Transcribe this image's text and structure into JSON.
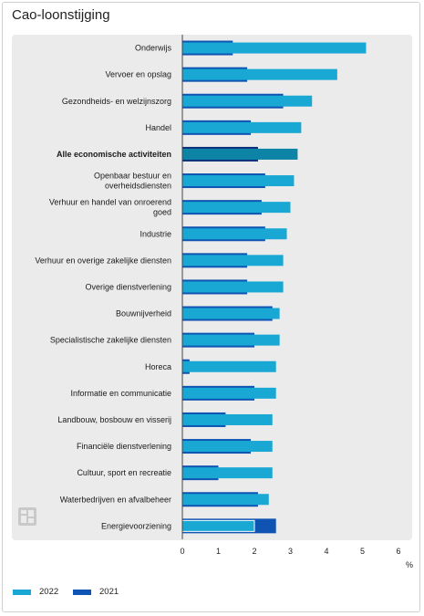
{
  "title": "Cao-loonstijging",
  "colors": {
    "y2022": "#19a8d3",
    "y2021": "#1054b3",
    "highlight_2022": "#0d84a6",
    "highlight_2021": "#0b2f7a",
    "panel": "#ebebeb"
  },
  "legend": [
    {
      "label": "2022",
      "color_key": "y2022"
    },
    {
      "label": "2021",
      "color_key": "y2021"
    }
  ],
  "logo_icon": "cbs-logo-icon",
  "chart_data": {
    "type": "bar",
    "orientation": "horizontal",
    "title": "Cao-loonstijging",
    "xlabel": "",
    "unit": "%",
    "xlim": [
      0,
      6
    ],
    "xticks": [
      "0",
      "1",
      "2",
      "3",
      "4",
      "5",
      "6"
    ],
    "highlight_category": "Alle economische activiteiten",
    "categories": [
      [
        "Onderwijs"
      ],
      [
        "Vervoer en opslag"
      ],
      [
        "Gezondheids- en welzijnszorg"
      ],
      [
        "Handel"
      ],
      [
        "Alle economische activiteiten"
      ],
      [
        "Openbaar bestuur en",
        "overheidsdiensten"
      ],
      [
        "Verhuur en handel van onroerend",
        "goed"
      ],
      [
        "Industrie"
      ],
      [
        "Verhuur en overige zakelijke diensten"
      ],
      [
        "Overige dienstverlening"
      ],
      [
        "Bouwnijverheid"
      ],
      [
        "Specialistische zakelijke diensten"
      ],
      [
        "Horeca"
      ],
      [
        "Informatie en communicatie"
      ],
      [
        "Landbouw, bosbouw en visserij"
      ],
      [
        "Financiële dienstverlening"
      ],
      [
        "Cultuur, sport en recreatie"
      ],
      [
        "Waterbedrijven en afvalbeheer"
      ],
      [
        "Energievoorziening"
      ]
    ],
    "series": [
      {
        "name": "2022",
        "values": [
          5.1,
          4.3,
          3.6,
          3.3,
          3.2,
          3.1,
          3.0,
          2.9,
          2.8,
          2.8,
          2.7,
          2.7,
          2.6,
          2.6,
          2.5,
          2.5,
          2.5,
          2.4,
          2.0
        ]
      },
      {
        "name": "2021",
        "values": [
          1.4,
          1.8,
          2.8,
          1.9,
          2.1,
          2.3,
          2.2,
          2.3,
          1.8,
          1.8,
          2.5,
          2.0,
          0.2,
          2.0,
          1.2,
          1.9,
          1.0,
          2.1,
          2.6
        ]
      }
    ]
  }
}
